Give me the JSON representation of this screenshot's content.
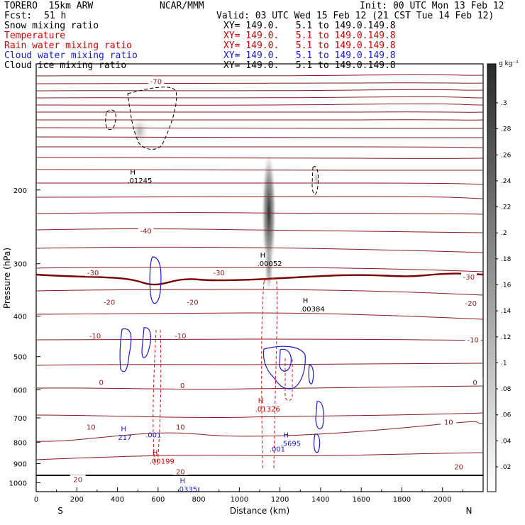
{
  "header": {
    "model": "TORERO  15km ARW",
    "center": "NCAR/MMM",
    "init": "Init: 00 UTC Mon 13 Feb 12",
    "fcst_label": "Fcst:",
    "fcst_value": "51 h",
    "valid": "Valid: 03 UTC Wed 15 Feb 12 (21 CST Tue 14 Feb 12)",
    "fields": [
      {
        "name": "Snow mixing ratio",
        "xy": "XY= 149.0.   5.1 to 149.0.149.8",
        "color": "#000000"
      },
      {
        "name": "Temperature",
        "xy": "XY= 149.0.   5.1 to 149.0.149.8",
        "color": "#cc0000"
      },
      {
        "name": "Rain water mixing ratio",
        "xy": "XY= 149.0.   5.1 to 149.0.149.8",
        "color": "#cc0000"
      },
      {
        "name": "Cloud water mixing ratio",
        "xy": "XY= 149.0.   5.1 to 149.0.149.8",
        "color": "#1a1acc"
      },
      {
        "name": "Cloud ice mixing ratio",
        "xy": "XY= 149.0.   5.1 to 149.0.149.8",
        "color": "#000000"
      }
    ]
  },
  "chart_data": {
    "type": "contour",
    "xlabel": "Distance (km)",
    "ylabel": "Pressure (hPa)",
    "xlim": [
      0,
      2200
    ],
    "ylim": [
      1050,
      100
    ],
    "x_ticks": [
      0,
      200,
      400,
      600,
      800,
      1000,
      1200,
      1400,
      1600,
      1800,
      2000
    ],
    "y_ticks": [
      200,
      300,
      400,
      500,
      600,
      700,
      800,
      900,
      1000
    ],
    "y_scale": "log",
    "end_labels": {
      "left": "S",
      "right": "N"
    },
    "colorbar": {
      "unit": "g kg⁻¹",
      "ticks": [
        ".02",
        ".04",
        ".06",
        ".08",
        ".1",
        ".12",
        ".14",
        ".16",
        ".18",
        ".2",
        ".22",
        ".24",
        ".26",
        ".28",
        ".3"
      ]
    },
    "temperature_labels": [
      {
        "text": "-70",
        "x": 590,
        "p": 110
      },
      {
        "text": "-40",
        "x": 540,
        "p": 250
      },
      {
        "text": "-30",
        "x": 280,
        "p": 315
      },
      {
        "text": "-30",
        "x": 900,
        "p": 315
      },
      {
        "text": "-30",
        "x": 2130,
        "p": 322
      },
      {
        "text": "-20",
        "x": 360,
        "p": 370
      },
      {
        "text": "-20",
        "x": 770,
        "p": 370
      },
      {
        "text": "-20",
        "x": 2140,
        "p": 372
      },
      {
        "text": "-10",
        "x": 290,
        "p": 445
      },
      {
        "text": "-10",
        "x": 710,
        "p": 445
      },
      {
        "text": "-10",
        "x": 2150,
        "p": 455
      },
      {
        "text": "0",
        "x": 320,
        "p": 575
      },
      {
        "text": "0",
        "x": 720,
        "p": 585
      },
      {
        "text": "0",
        "x": 2160,
        "p": 575
      },
      {
        "text": "10",
        "x": 270,
        "p": 735
      },
      {
        "text": "10",
        "x": 710,
        "p": 735
      },
      {
        "text": "10",
        "x": 2030,
        "p": 715
      },
      {
        "text": "20",
        "x": 205,
        "p": 980
      },
      {
        "text": "20",
        "x": 710,
        "p": 940
      },
      {
        "text": "20",
        "x": 2080,
        "p": 915
      }
    ],
    "maxima_labels": [
      {
        "h": "H",
        "value": ".01245",
        "x": 490,
        "p": 185,
        "color": "#000000"
      },
      {
        "h": "H",
        "value": ".00052",
        "x": 1130,
        "p": 292,
        "color": "#000000"
      },
      {
        "h": "H",
        "value": ".00384",
        "x": 1340,
        "p": 375,
        "color": "#000000"
      },
      {
        "h": "H",
        "value": ".01326",
        "x": 1120,
        "p": 650,
        "color": "#cc0000"
      },
      {
        "h": "H",
        "value": ".00199",
        "x": 600,
        "p": 865,
        "color": "#cc0000"
      },
      {
        "h": "H",
        "value": "217",
        "x": 445,
        "p": 760,
        "color": "#1a1acc"
      },
      {
        "h": "",
        "value": ".001",
        "x": 580,
        "p": 750,
        "color": "#1a1acc"
      },
      {
        "h": "H",
        "value": ".5695",
        "x": 1245,
        "p": 785,
        "color": "#1a1acc"
      },
      {
        "h": "",
        "value": ".001",
        "x": 1190,
        "p": 810,
        "color": "#1a1acc"
      },
      {
        "h": "H",
        "value": ".0335",
        "x": 735,
        "p": 1010,
        "color": "#1a1acc"
      }
    ]
  }
}
